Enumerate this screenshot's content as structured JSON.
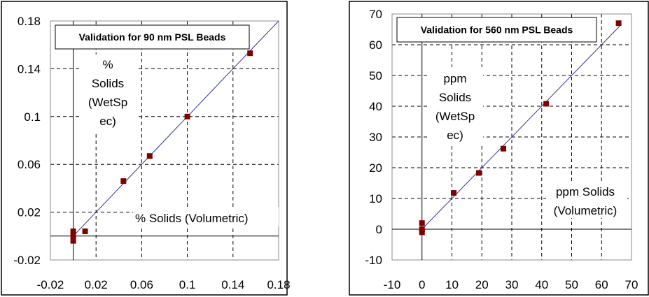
{
  "chart_data": [
    {
      "type": "scatter",
      "title": "Validation for 90 nm PSL Beads",
      "xlabel": "% Solids (Volumetric)",
      "ylabel_lines": [
        "%",
        "Solids",
        "(WetSp",
        "ec)"
      ],
      "xlim": [
        -0.02,
        0.18
      ],
      "ylim": [
        -0.02,
        0.18
      ],
      "xticks": [
        -0.02,
        0.02,
        0.06,
        0.1,
        0.14,
        0.18
      ],
      "yticks": [
        -0.02,
        0.02,
        0.06,
        0.1,
        0.14,
        0.18
      ],
      "xtick_labels": [
        "-0.02",
        "0.02",
        "0.06",
        "0.1",
        "0.14",
        "0.18"
      ],
      "ytick_labels": [
        "-0.02",
        "0.02",
        "0.06",
        "0.1",
        "0.14",
        "0.18"
      ],
      "grid": true,
      "marker_color": "#7f0000",
      "line_color": "#333399",
      "points": [
        [
          0,
          0.004
        ],
        [
          0,
          0
        ],
        [
          0,
          -0.004
        ],
        [
          0.0104,
          0.004
        ],
        [
          0.044,
          0.046
        ],
        [
          0.067,
          0.067
        ],
        [
          0.1,
          0.1
        ],
        [
          0.155,
          0.153
        ]
      ],
      "fit_line": [
        [
          0,
          0
        ],
        [
          0.18,
          0.18
        ]
      ]
    },
    {
      "type": "scatter",
      "title": "Validation for 560 nm PSL Beads",
      "xlabel_lines": [
        "ppm Solids",
        "(Volumetric)"
      ],
      "ylabel_lines": [
        "ppm",
        "Solids",
        "(WetSp",
        "ec)"
      ],
      "xlim": [
        -10,
        70
      ],
      "ylim": [
        -10,
        70
      ],
      "xticks": [
        -10,
        0,
        10,
        20,
        30,
        40,
        50,
        60,
        70
      ],
      "yticks": [
        -10,
        0,
        10,
        20,
        30,
        40,
        50,
        60,
        70
      ],
      "xtick_labels": [
        "-10",
        "0",
        "10",
        "20",
        "30",
        "40",
        "50",
        "60",
        "70"
      ],
      "ytick_labels": [
        "-10",
        "0",
        "10",
        "20",
        "30",
        "40",
        "50",
        "60",
        "70"
      ],
      "grid": true,
      "marker_color": "#7f0000",
      "line_color": "#333399",
      "points": [
        [
          0,
          2
        ],
        [
          0,
          0
        ],
        [
          0,
          -1
        ],
        [
          10.6,
          11.8
        ],
        [
          19,
          18.3
        ],
        [
          27.2,
          26.2
        ],
        [
          41.5,
          40.8
        ],
        [
          65.7,
          67
        ]
      ],
      "fit_line": [
        [
          0,
          0
        ],
        [
          66,
          66
        ]
      ]
    }
  ]
}
